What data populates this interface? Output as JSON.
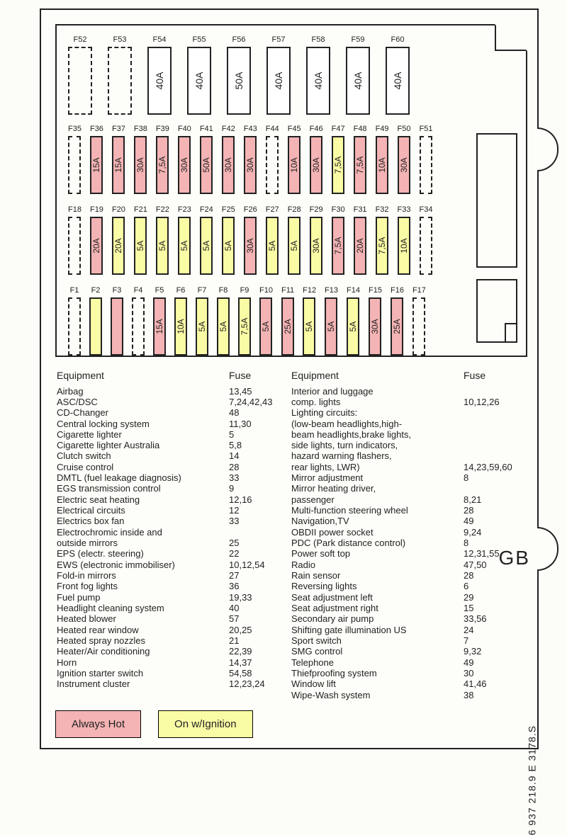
{
  "colors": {
    "always_hot": "#f4b3b4",
    "on_ignition": "#fafba5",
    "border": "#222222",
    "background": "#fdfef9"
  },
  "legend": {
    "hot": "Always Hot",
    "ign": "On w/Ignition"
  },
  "side_label": "GB",
  "part_number": "6 937 218.9 E 3178.S",
  "headers": {
    "equipment": "Equipment",
    "fuse": "Fuse"
  },
  "top_row": [
    {
      "id": "F52",
      "amp": "",
      "state": "dashed"
    },
    {
      "id": "F53",
      "amp": "",
      "state": "dashed"
    },
    {
      "id": "F54",
      "amp": "40A",
      "state": "plain"
    },
    {
      "id": "F55",
      "amp": "40A",
      "state": "plain"
    },
    {
      "id": "F56",
      "amp": "50A",
      "state": "plain"
    },
    {
      "id": "F57",
      "amp": "40A",
      "state": "plain"
    },
    {
      "id": "F58",
      "amp": "40A",
      "state": "plain"
    },
    {
      "id": "F59",
      "amp": "40A",
      "state": "plain"
    },
    {
      "id": "F60",
      "amp": "40A",
      "state": "plain"
    }
  ],
  "row_a": [
    {
      "id": "F35",
      "amp": "",
      "state": "dashed"
    },
    {
      "id": "F36",
      "amp": "15A",
      "state": "hot"
    },
    {
      "id": "F37",
      "amp": "15A",
      "state": "hot"
    },
    {
      "id": "F38",
      "amp": "30A",
      "state": "hot"
    },
    {
      "id": "F39",
      "amp": "7,5A",
      "state": "hot"
    },
    {
      "id": "F40",
      "amp": "30A",
      "state": "hot"
    },
    {
      "id": "F41",
      "amp": "50A",
      "state": "hot"
    },
    {
      "id": "F42",
      "amp": "30A",
      "state": "hot"
    },
    {
      "id": "F43",
      "amp": "30A",
      "state": "hot"
    },
    {
      "id": "F44",
      "amp": "",
      "state": "dashed"
    },
    {
      "id": "F45",
      "amp": "10A",
      "state": "hot"
    },
    {
      "id": "F46",
      "amp": "30A",
      "state": "hot"
    },
    {
      "id": "F47",
      "amp": "7,5A",
      "state": "ign"
    },
    {
      "id": "F48",
      "amp": "7,5A",
      "state": "hot"
    },
    {
      "id": "F49",
      "amp": "10A",
      "state": "hot"
    },
    {
      "id": "F50",
      "amp": "30A",
      "state": "hot"
    },
    {
      "id": "F51",
      "amp": "",
      "state": "dashed"
    }
  ],
  "row_b": [
    {
      "id": "F18",
      "amp": "",
      "state": "dashed"
    },
    {
      "id": "F19",
      "amp": "20A",
      "state": "hot"
    },
    {
      "id": "F20",
      "amp": "20A",
      "state": "ign"
    },
    {
      "id": "F21",
      "amp": "5A",
      "state": "ign"
    },
    {
      "id": "F22",
      "amp": "5A",
      "state": "ign"
    },
    {
      "id": "F23",
      "amp": "5A",
      "state": "ign"
    },
    {
      "id": "F24",
      "amp": "5A",
      "state": "ign"
    },
    {
      "id": "F25",
      "amp": "5A",
      "state": "ign"
    },
    {
      "id": "F26",
      "amp": "30A",
      "state": "hot"
    },
    {
      "id": "F27",
      "amp": "5A",
      "state": "ign"
    },
    {
      "id": "F28",
      "amp": "5A",
      "state": "ign"
    },
    {
      "id": "F29",
      "amp": "30A",
      "state": "ign"
    },
    {
      "id": "F30",
      "amp": "7,5A",
      "state": "hot"
    },
    {
      "id": "F31",
      "amp": "20A",
      "state": "hot"
    },
    {
      "id": "F32",
      "amp": "7,5A",
      "state": "ign"
    },
    {
      "id": "F33",
      "amp": "10A",
      "state": "ign"
    },
    {
      "id": "F34",
      "amp": "",
      "state": "dashed"
    }
  ],
  "row_c": [
    {
      "id": "F1",
      "amp": "",
      "state": "dashed"
    },
    {
      "id": "F2",
      "amp": "",
      "state": "ign"
    },
    {
      "id": "F3",
      "amp": "",
      "state": "hot"
    },
    {
      "id": "F4",
      "amp": "",
      "state": "dashed"
    },
    {
      "id": "F5",
      "amp": "15A",
      "state": "hot"
    },
    {
      "id": "F6",
      "amp": "10A",
      "state": "ign"
    },
    {
      "id": "F7",
      "amp": "5A",
      "state": "ign"
    },
    {
      "id": "F8",
      "amp": "5A",
      "state": "ign"
    },
    {
      "id": "F9",
      "amp": "7,5A",
      "state": "ign"
    },
    {
      "id": "F10",
      "amp": "5A",
      "state": "hot"
    },
    {
      "id": "F11",
      "amp": "25A",
      "state": "hot"
    },
    {
      "id": "F12",
      "amp": "5A",
      "state": "ign"
    },
    {
      "id": "F13",
      "amp": "5A",
      "state": "hot"
    },
    {
      "id": "F14",
      "amp": "5A",
      "state": "ign"
    },
    {
      "id": "F15",
      "amp": "30A",
      "state": "hot"
    },
    {
      "id": "F16",
      "amp": "25A",
      "state": "hot"
    },
    {
      "id": "F17",
      "amp": "",
      "state": "dashed"
    }
  ],
  "equipment_left": [
    {
      "name": "Airbag",
      "fuse": "13,45"
    },
    {
      "name": "ASC/DSC",
      "fuse": "7,24,42,43"
    },
    {
      "name": "CD-Changer",
      "fuse": "48"
    },
    {
      "name": "Central locking system",
      "fuse": "11,30"
    },
    {
      "name": "Cigarette lighter",
      "fuse": "5"
    },
    {
      "name": "Cigarette lighter Australia",
      "fuse": "5,8"
    },
    {
      "name": "Clutch switch",
      "fuse": "14"
    },
    {
      "name": "Cruise control",
      "fuse": "28"
    },
    {
      "name": "DMTL (fuel leakage diagnosis)",
      "fuse": "33"
    },
    {
      "name": "EGS transmission control",
      "fuse": "9"
    },
    {
      "name": "Electric seat heating",
      "fuse": "12,16"
    },
    {
      "name": "Electrical circuits",
      "fuse": "12"
    },
    {
      "name": "Electrics box fan",
      "fuse": "33"
    },
    {
      "name": "Electrochromic inside and",
      "fuse": ""
    },
    {
      "name": "outside mirrors",
      "fuse": "25"
    },
    {
      "name": "EPS (electr. steering)",
      "fuse": "22"
    },
    {
      "name": "EWS (electronic immobiliser)",
      "fuse": "10,12,54"
    },
    {
      "name": "Fold-in mirrors",
      "fuse": "27"
    },
    {
      "name": "Front fog lights",
      "fuse": "36"
    },
    {
      "name": "Fuel pump",
      "fuse": "19,33"
    },
    {
      "name": "Headlight cleaning system",
      "fuse": "40"
    },
    {
      "name": "Heated blower",
      "fuse": "57"
    },
    {
      "name": "Heated rear window",
      "fuse": "20,25"
    },
    {
      "name": "Heated spray nozzles",
      "fuse": "21"
    },
    {
      "name": "Heater/Air conditioning",
      "fuse": "22,39"
    },
    {
      "name": "Horn",
      "fuse": "14,37"
    },
    {
      "name": "Ignition starter switch",
      "fuse": "54,58"
    },
    {
      "name": "Instrument cluster",
      "fuse": "12,23,24"
    }
  ],
  "equipment_right": [
    {
      "name": "Interior and luggage",
      "fuse": ""
    },
    {
      "name": "comp. lights",
      "fuse": "10,12,26"
    },
    {
      "name": "Lighting circuits:",
      "fuse": ""
    },
    {
      "name": "(low-beam headlights,high-",
      "fuse": ""
    },
    {
      "name": "beam headlights,brake lights,",
      "fuse": ""
    },
    {
      "name": "side lights, turn indicators,",
      "fuse": ""
    },
    {
      "name": "hazard warning flashers,",
      "fuse": ""
    },
    {
      "name": "rear lights, LWR)",
      "fuse": "14,23,59,60"
    },
    {
      "name": "Mirror adjustment",
      "fuse": "8"
    },
    {
      "name": "Mirror heating driver,",
      "fuse": ""
    },
    {
      "name": "passenger",
      "fuse": "8,21"
    },
    {
      "name": "Multi-function steering wheel",
      "fuse": "28"
    },
    {
      "name": "Navigation,TV",
      "fuse": "49"
    },
    {
      "name": "OBDII power socket",
      "fuse": "9,24"
    },
    {
      "name": "PDC (Park distance control)",
      "fuse": "8"
    },
    {
      "name": "Power soft top",
      "fuse": "12,31,55"
    },
    {
      "name": "Radio",
      "fuse": "47,50"
    },
    {
      "name": "Rain sensor",
      "fuse": "28"
    },
    {
      "name": "Reversing lights",
      "fuse": "6"
    },
    {
      "name": "Seat adjustment left",
      "fuse": "29"
    },
    {
      "name": "Seat adjustment right",
      "fuse": "15"
    },
    {
      "name": "Secondary air pump",
      "fuse": "33,56"
    },
    {
      "name": "Shifting gate illumination US",
      "fuse": "24"
    },
    {
      "name": "Sport switch",
      "fuse": "7"
    },
    {
      "name": "SMG control",
      "fuse": "9,32"
    },
    {
      "name": "Telephone",
      "fuse": "49"
    },
    {
      "name": "Thiefproofing system",
      "fuse": "30"
    },
    {
      "name": "Window lift",
      "fuse": "41,46"
    },
    {
      "name": "Wipe-Wash system",
      "fuse": "38"
    }
  ]
}
